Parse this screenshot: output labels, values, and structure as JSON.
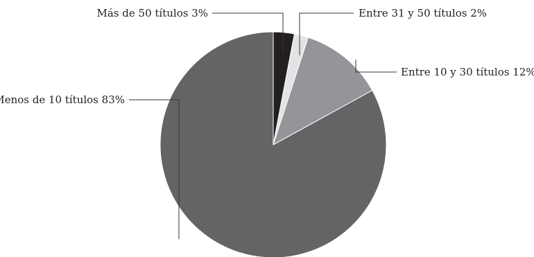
{
  "chart_data": {
    "type": "pie",
    "title": "",
    "start_angle_deg": 0,
    "direction": "clockwise",
    "slices": [
      {
        "label": "Más de 50 títulos",
        "value": 3,
        "pct_label": "3%",
        "color": "#231f20"
      },
      {
        "label": "Entre 31 y 50 títulos",
        "value": 2,
        "pct_label": "2%",
        "color": "#e2e3e4"
      },
      {
        "label": "Entre 10 y 30 títulos",
        "value": 12,
        "pct_label": "12%",
        "color": "#939598"
      },
      {
        "label": "Menos de 10 títulos",
        "value": 83,
        "pct_label": "83%",
        "color": "#636466"
      }
    ]
  }
}
